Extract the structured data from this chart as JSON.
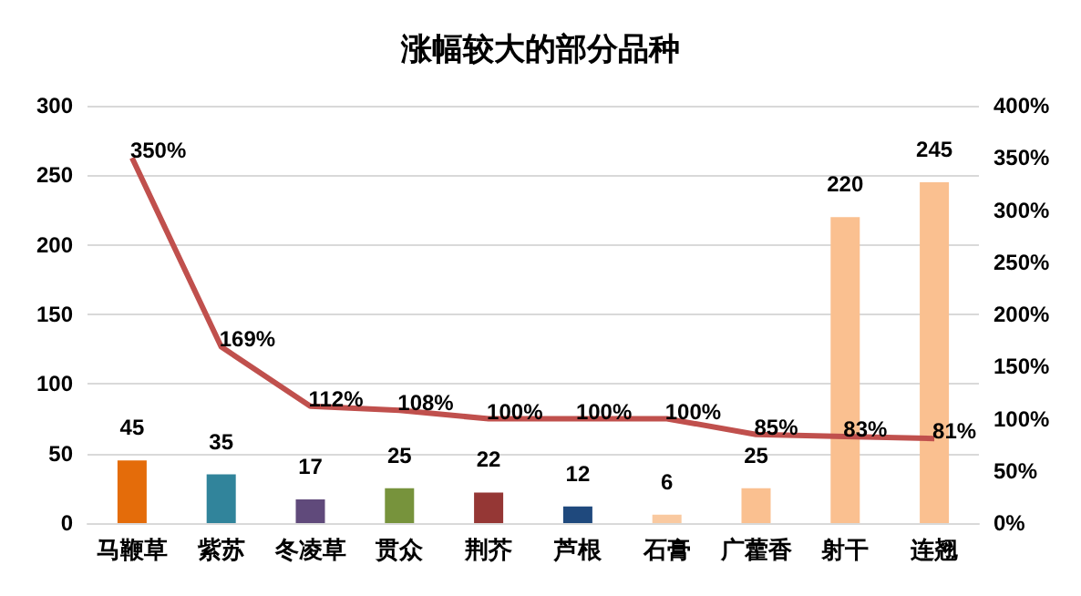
{
  "chart_data": {
    "type": "bar",
    "title": "涨幅较大的部分品种",
    "categories": [
      "马鞭草",
      "紫苏",
      "冬凌草",
      "贯众",
      "荆芥",
      "芦根",
      "石膏",
      "广藿香",
      "射干",
      "连翘"
    ],
    "series": [
      {
        "values": [
          45,
          35,
          17,
          25,
          22,
          12,
          6,
          25,
          220,
          245
        ],
        "colors": [
          "#e46c0a",
          "#31849b",
          "#604a7b",
          "#77933c",
          "#953735",
          "#1f497d",
          "#f9c9a0",
          "#fac090",
          "#fac090",
          "#fac090"
        ]
      },
      {
        "type": "line",
        "axis": "y2",
        "color": "#c0504d",
        "values": [
          350,
          169,
          112,
          108,
          100,
          100,
          100,
          85,
          83,
          81
        ],
        "value_labels": [
          "350%",
          "169%",
          "112%",
          "108%",
          "100%",
          "100%",
          "100%",
          "85%",
          "83%",
          "81%"
        ]
      }
    ],
    "data_labels": true,
    "ylim": [
      0,
      300
    ],
    "yticks": [
      0,
      50,
      100,
      150,
      200,
      250,
      300
    ],
    "y2lim": [
      0,
      400
    ],
    "y2ticks": [
      {
        "value": 0,
        "label": "0%"
      },
      {
        "value": 50,
        "label": "50%"
      },
      {
        "value": 100,
        "label": "100%"
      },
      {
        "value": 150,
        "label": "150%"
      },
      {
        "value": 200,
        "label": "200%"
      },
      {
        "value": 250,
        "label": "250%"
      },
      {
        "value": 300,
        "label": "300%"
      },
      {
        "value": 350,
        "label": "350%"
      },
      {
        "value": 400,
        "label": "400%"
      }
    ],
    "grid": "y",
    "marker": "none"
  }
}
